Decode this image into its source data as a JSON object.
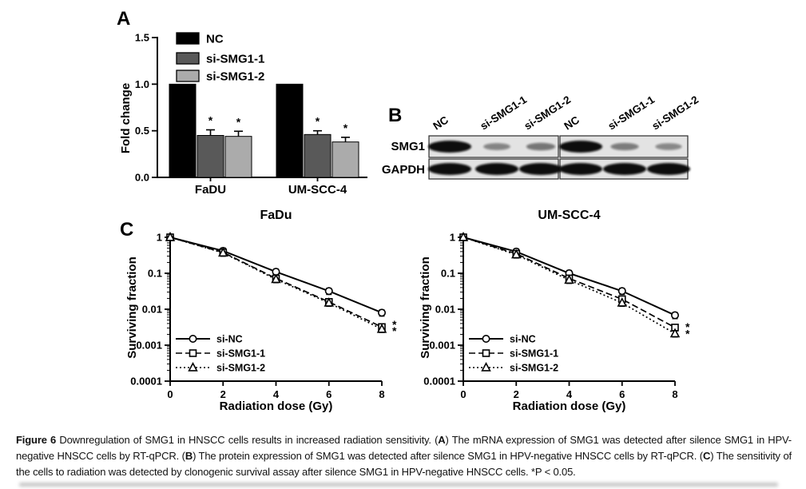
{
  "figure": {
    "panel_labels": {
      "a": "A",
      "b": "B",
      "c": "C"
    },
    "panel_b": {
      "row_labels": [
        "SMG1",
        "GAPDH"
      ],
      "lane_labels": [
        "NC",
        "si-SMG1-1",
        "si-SMG1-2",
        "NC",
        "si-SMG1-1",
        "si-SMG1-2"
      ],
      "smg1_band_intensities": [
        1.0,
        0.22,
        0.32,
        1.0,
        0.28,
        0.2
      ],
      "gapdh_band_intensities": [
        1,
        1,
        1,
        1,
        1,
        1
      ],
      "membrane_color": "#e3e3e3"
    },
    "caption": {
      "segments": [
        {
          "text": "Figure 6",
          "bold": true
        },
        {
          "text": " Downregulation of SMG1 in HNSCC cells results in increased radiation sensitivity. (",
          "bold": false
        },
        {
          "text": "A",
          "bold": true
        },
        {
          "text": ") The mRNA expression of SMG1 was detected after silence SMG1 in HPV-negative HNSCC cells by RT-qPCR. (",
          "bold": false
        },
        {
          "text": "B",
          "bold": true
        },
        {
          "text": ") The protein expression of SMG1 was detected after silence SMG1 in HPV-negative HNSCC cells by RT-qPCR. (",
          "bold": false
        },
        {
          "text": "C",
          "bold": true
        },
        {
          "text": ") The sensitivity of the cells to radiation was detected by clonogenic survival assay after silence SMG1 in HPV-negative HNSCC cells. *P < 0.05.",
          "bold": false
        }
      ]
    }
  },
  "colors": {
    "black": "#000000",
    "dark_gray": "#595959",
    "light_gray": "#ababab"
  },
  "chart_data": [
    {
      "type": "bar",
      "panel": "A",
      "title": "",
      "xlabel": "",
      "ylabel": "Fold change",
      "ylim": [
        0,
        1.5
      ],
      "yticks": [
        "0.0",
        "0.5",
        "1.0",
        "1.5"
      ],
      "categories": [
        "FaDU",
        "UM-SCC-4"
      ],
      "legend_position": "upper-left",
      "series": [
        {
          "name": "NC",
          "color": "#000000",
          "values": [
            1.0,
            1.0
          ],
          "errors": [
            0,
            0
          ],
          "sig": [
            "",
            ""
          ]
        },
        {
          "name": "si-SMG1-1",
          "color": "#595959",
          "values": [
            0.45,
            0.46
          ],
          "errors": [
            0.06,
            0.04
          ],
          "sig": [
            "*",
            "*"
          ]
        },
        {
          "name": "si-SMG1-2",
          "color": "#ababab",
          "values": [
            0.44,
            0.38
          ],
          "errors": [
            0.055,
            0.05
          ],
          "sig": [
            "*",
            "*"
          ]
        }
      ]
    },
    {
      "type": "line",
      "panel": "C",
      "title": "FaDu",
      "xlabel": "Radiation dose (Gy)",
      "ylabel": "Surviving fraction",
      "yscale": "log",
      "ylim": [
        0.0001,
        1
      ],
      "yticks": [
        "1",
        "0.1",
        "0.01",
        "0.001",
        "0.0001"
      ],
      "x": [
        0,
        2,
        4,
        6,
        8
      ],
      "xticks": [
        "0",
        "2",
        "4",
        "6",
        "8"
      ],
      "legend_position": "lower-left",
      "error_fraction": 0.2,
      "series": [
        {
          "name": "si-NC",
          "marker": "circle",
          "line": "solid",
          "y": [
            1,
            0.42,
            0.11,
            0.032,
            0.008
          ]
        },
        {
          "name": "si-SMG1-1",
          "marker": "square",
          "line": "dashed",
          "y": [
            1,
            0.38,
            0.072,
            0.016,
            0.0032
          ]
        },
        {
          "name": "si-SMG1-2",
          "marker": "triangle",
          "line": "dotted",
          "y": [
            1,
            0.37,
            0.068,
            0.015,
            0.0028
          ]
        }
      ],
      "annotations": [
        {
          "x": 8,
          "y": 0.0036,
          "text": "*"
        },
        {
          "x": 8,
          "y": 0.0024,
          "text": "*"
        }
      ]
    },
    {
      "type": "line",
      "panel": "C",
      "title": "UM-SCC-4",
      "xlabel": "Radiation dose (Gy)",
      "ylabel": "Surviving fraction",
      "yscale": "log",
      "ylim": [
        0.0001,
        1
      ],
      "yticks": [
        "1",
        "0.1",
        "0.01",
        "0.001",
        "0.0001"
      ],
      "x": [
        0,
        2,
        4,
        6,
        8
      ],
      "xticks": [
        "0",
        "2",
        "4",
        "6",
        "8"
      ],
      "legend_position": "lower-left",
      "error_fraction": 0.2,
      "series": [
        {
          "name": "si-NC",
          "marker": "circle",
          "line": "solid",
          "y": [
            1,
            0.4,
            0.1,
            0.032,
            0.0068
          ]
        },
        {
          "name": "si-SMG1-1",
          "marker": "square",
          "line": "dashed",
          "y": [
            1,
            0.35,
            0.072,
            0.019,
            0.0031
          ]
        },
        {
          "name": "si-SMG1-2",
          "marker": "triangle",
          "line": "dotted",
          "y": [
            1,
            0.33,
            0.065,
            0.015,
            0.0021
          ]
        }
      ],
      "annotations": [
        {
          "x": 8,
          "y": 0.0031,
          "text": "*"
        },
        {
          "x": 8,
          "y": 0.002,
          "text": "*"
        }
      ]
    }
  ]
}
